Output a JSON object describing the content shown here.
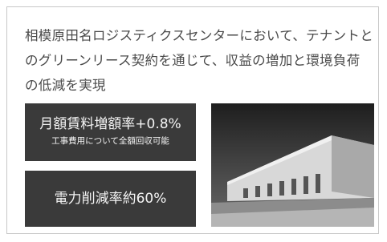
{
  "description": {
    "lines": [
      "相模原田名ロジスティクスセンターにおいて、テナントと",
      "のグリーンリース契約を通じて、収益の増加と環境負荷",
      "の低減を実現"
    ]
  },
  "highlights": [
    {
      "title": "月額賃料増額率+0.8%",
      "note": "工事費用について全額回収可能"
    },
    {
      "title": "電力削減率約60%"
    }
  ]
}
